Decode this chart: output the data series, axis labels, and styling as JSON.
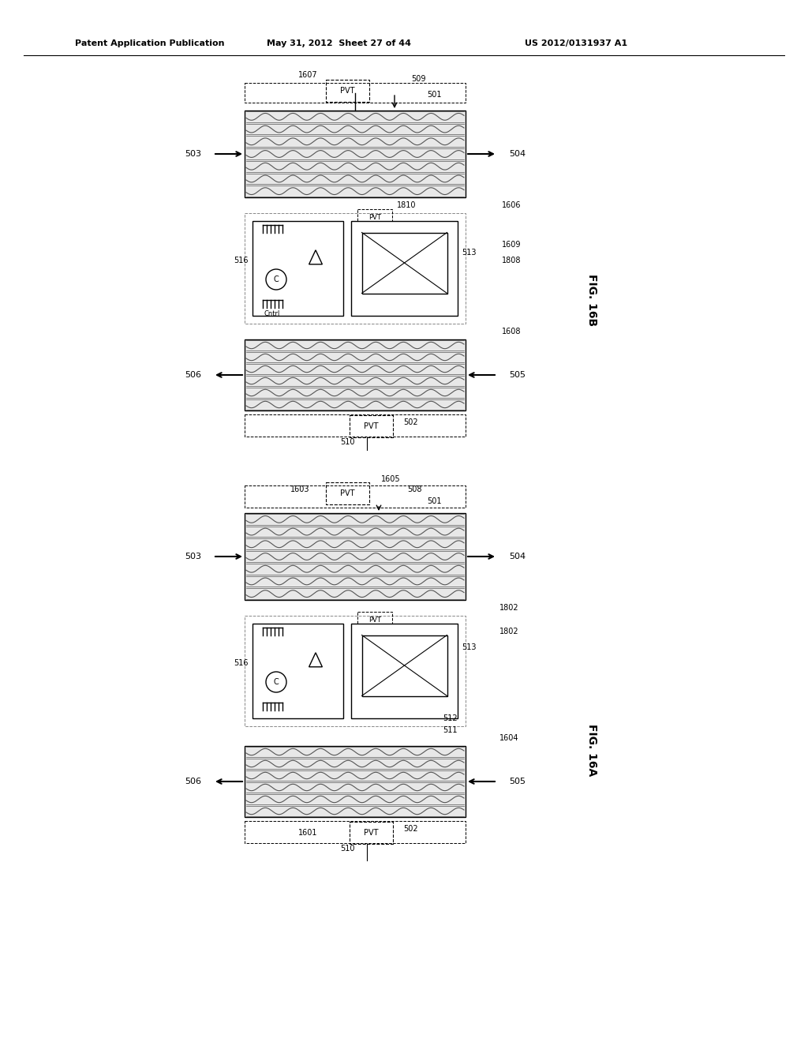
{
  "page_title_left": "Patent Application Publication",
  "page_title_mid": "May 31, 2012  Sheet 27 of 44",
  "page_title_right": "US 2012/0131937 A1",
  "fig_label_top": "FIG. 16B",
  "fig_label_bottom": "FIG. 16A",
  "background_color": "#ffffff",
  "line_color": "#000000",
  "light_gray": "#888888",
  "dark_gray": "#444444",
  "box_fill": "#ffffff",
  "wavy_fill": "#cccccc",
  "dashed_line_color": "#555555"
}
